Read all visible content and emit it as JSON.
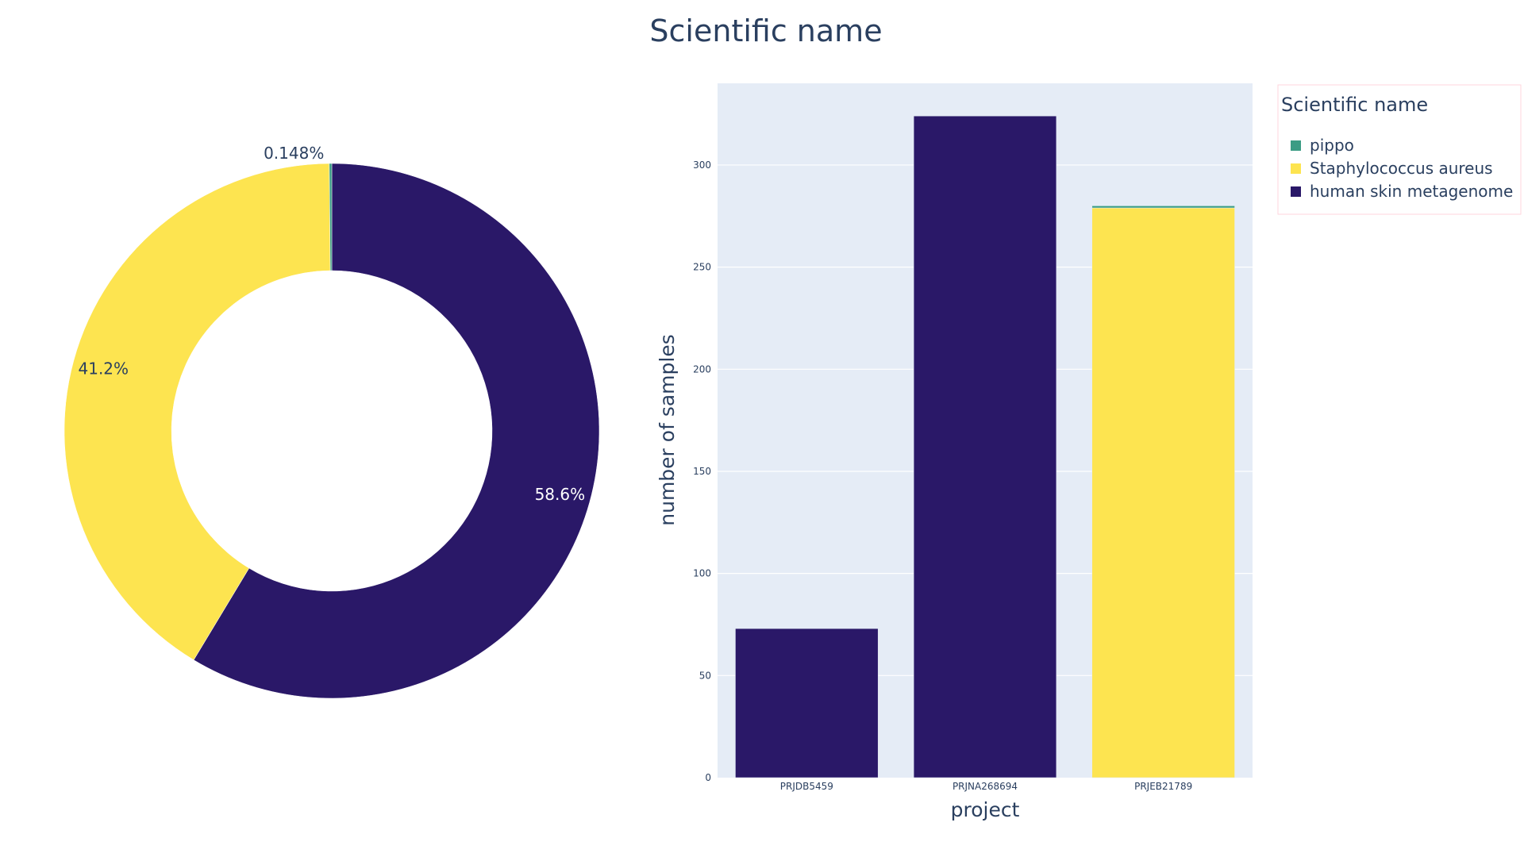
{
  "title": "Scientific name",
  "colors": {
    "pippo": "#3b9c84",
    "staph": "#fde450",
    "human": "#2a1868",
    "plot_bg": "#e5ecf6",
    "text": "#2a3f5f"
  },
  "legend": {
    "title": "Scientific name",
    "items": [
      "pippo",
      "Staphylococcus aureus",
      "human skin metagenome"
    ]
  },
  "chart_data": [
    {
      "type": "pie",
      "hole": true,
      "labels": [
        "human skin metagenome",
        "Staphylococcus aureus",
        "pippo"
      ],
      "values": [
        58.6,
        41.2,
        0.148
      ],
      "value_labels": [
        "58.6%",
        "41.2%",
        "0.148%"
      ]
    },
    {
      "type": "bar",
      "stacked": true,
      "categories": [
        "PRJDB5459",
        "PRJNA268694",
        "PRJEB21789"
      ],
      "series": [
        {
          "name": "human skin metagenome",
          "values": [
            73,
            324,
            0
          ]
        },
        {
          "name": "Staphylococcus aureus",
          "values": [
            0,
            0,
            279
          ]
        },
        {
          "name": "pippo",
          "values": [
            0,
            0,
            1
          ]
        }
      ],
      "xlabel": "project",
      "ylabel": "number of samples",
      "ylim": [
        0,
        340
      ],
      "yticks": [
        0,
        50,
        100,
        150,
        200,
        250,
        300
      ],
      "grid": true,
      "legend_position": "top-right"
    }
  ]
}
